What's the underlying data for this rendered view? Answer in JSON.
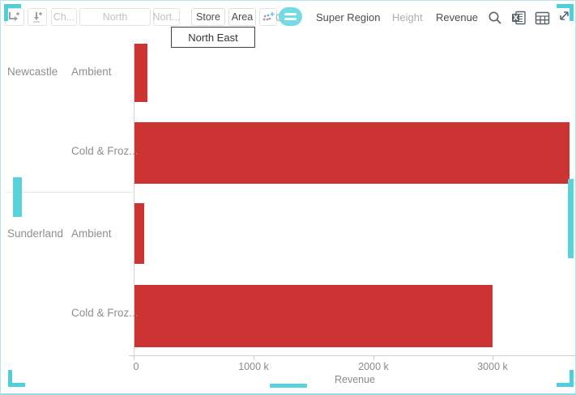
{
  "toolbar": {
    "buttons": [
      {
        "label": "Ch...",
        "disabled": true
      },
      {
        "label": "North",
        "disabled": true
      },
      {
        "label": "Nort...",
        "disabled": true
      },
      {
        "label": "Store",
        "disabled": false
      },
      {
        "label": "Area",
        "disabled": false
      }
    ],
    "left_icons": [
      "add-column-breakdown-icon",
      "add-row-breakdown-icon",
      "add-visualization-icon",
      "menu-pill-icon"
    ],
    "mapping": {
      "color_label": "Color",
      "color_value": "Super Region",
      "height_label": "Height",
      "height_value": "Revenue"
    },
    "right_icons": [
      "search-icon",
      "excel-export-icon",
      "table-icon",
      "maximize-icon"
    ]
  },
  "tooltip": {
    "text": "North East"
  },
  "chart_data": {
    "type": "bar",
    "orientation": "horizontal",
    "title": "",
    "xlabel": "Revenue",
    "xlim": [
      0,
      3690000
    ],
    "x_ticks": [
      "0",
      "1000 k",
      "2000 k",
      "3000 k"
    ],
    "x_tick_values": [
      0,
      1000000,
      2000000,
      3000000
    ],
    "grid": false,
    "bar_color": "#cc3333",
    "groups": [
      "Newcastle",
      "Sunderland"
    ],
    "rows": [
      {
        "group": "Newcastle",
        "label": "Ambient",
        "value": 110000
      },
      {
        "group": "Newcastle",
        "label": "Cold & Froz...",
        "value": 3640000
      },
      {
        "group": "Sunderland",
        "label": "Ambient",
        "value": 80000
      },
      {
        "group": "Sunderland",
        "label": "Cold & Froz...",
        "value": 3000000
      }
    ]
  },
  "colors": {
    "bar": "#cc3333",
    "accent_teal": "#59d2da",
    "window_border": "#b6e7eb",
    "disabled_text": "#c2c2c2",
    "label_gray": "#8f8f8f"
  }
}
